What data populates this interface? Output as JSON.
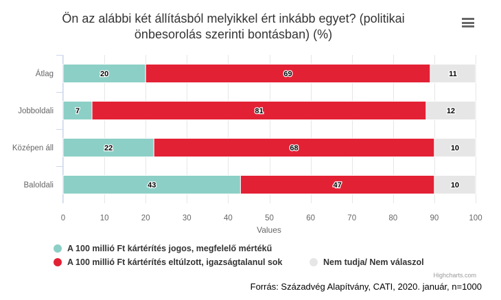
{
  "title": "Ön az alábbi két állításból melyikkel ért inkább egyet? (politikai önbesorolás szerinti bontásban) (%)",
  "menu_icon": "hamburger-menu-icon",
  "credits": "Highcharts.com",
  "source": "Forrás: Századvég Alapítvány, CATI, 2020. január, n=1000",
  "chart_data": {
    "type": "bar",
    "stacking": "normal",
    "categories": [
      "Átlag",
      "Jobboldali",
      "Középen áll",
      "Baloldali"
    ],
    "series": [
      {
        "name": "A 100 millió Ft kártérítés jogos, megfelelő mértékű",
        "color": "#8ccfc6",
        "values": [
          20,
          7,
          22,
          43
        ]
      },
      {
        "name": "A 100 millió Ft kártérítés eltúlzott, igazságtalanul sok",
        "color": "#e32135",
        "values": [
          69,
          81,
          68,
          47
        ]
      },
      {
        "name": "Nem tudja/ Nem válaszol",
        "color": "#e6e6e6",
        "values": [
          11,
          12,
          10,
          10
        ]
      }
    ],
    "xlabel": "Values",
    "xlim": [
      0,
      100
    ],
    "ticks": [
      0,
      10,
      20,
      30,
      40,
      50,
      60,
      70,
      80,
      90,
      100
    ],
    "grid": true,
    "legend": "bottom"
  }
}
